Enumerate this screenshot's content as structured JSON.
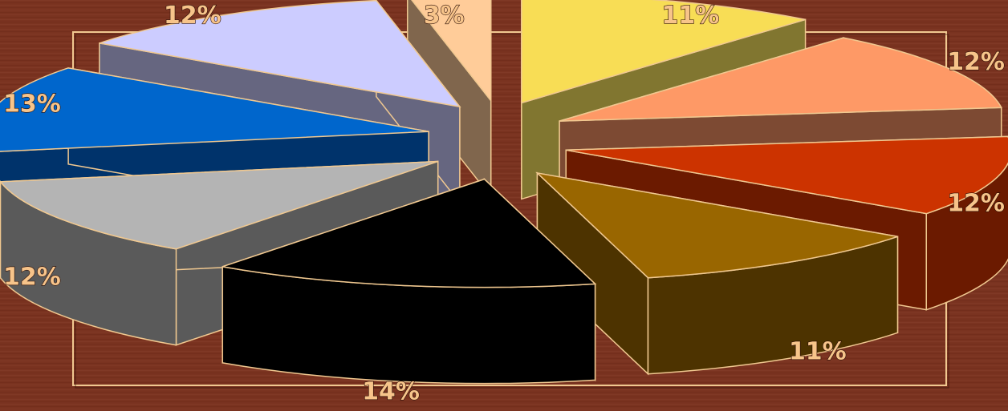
{
  "chart_data": {
    "type": "pie",
    "title": "",
    "legend": "none",
    "slices": [
      {
        "value": 11,
        "label": "11%",
        "top": "#f8dd55",
        "side": "#817630"
      },
      {
        "value": 12,
        "label": "12%",
        "top": "#fe9966",
        "side": "#7d4a33"
      },
      {
        "value": 12,
        "label": "12%",
        "top": "#cc3300",
        "side": "#6b1a00"
      },
      {
        "value": 11,
        "label": "11%",
        "top": "#996600",
        "side": "#4d3300"
      },
      {
        "value": 14,
        "label": "14%",
        "top": "#000000",
        "side": "#000000"
      },
      {
        "value": 12,
        "label": "12%",
        "top": "#b4b4b4",
        "side": "#5a5a5a"
      },
      {
        "value": 13,
        "label": "13%",
        "top": "#0066cc",
        "side": "#00336b"
      },
      {
        "value": 12,
        "label": "12%",
        "top": "#ccccff",
        "side": "#666680"
      },
      {
        "value": 3,
        "label": "3%",
        "top": "#ffcc99",
        "side": "#80664d"
      }
    ],
    "colors": {
      "background": "#7a3320",
      "outline": "#f0c890",
      "label": "#f7c48a"
    }
  }
}
